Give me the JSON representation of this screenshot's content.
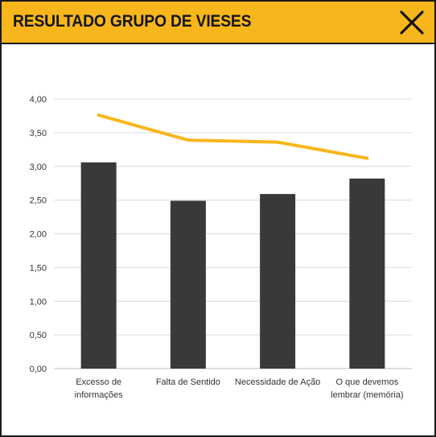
{
  "window": {
    "title": "RESULTADO GRUPO DE VIESES",
    "close_icon": "close-icon"
  },
  "colors": {
    "header_bg": "#f7b61c",
    "bar": "#3a3839",
    "line": "#f7b61c",
    "grid": "#d9d9d9"
  },
  "chart_data": {
    "type": "bar",
    "categories": [
      [
        "Excesso de",
        "informações"
      ],
      [
        "Falta de Sentido"
      ],
      [
        "Necessidade de Ação"
      ],
      [
        "O que devemos",
        "lembrar (memória)"
      ]
    ],
    "series": [
      {
        "type": "bar",
        "values": [
          3.06,
          2.49,
          2.59,
          2.82
        ]
      },
      {
        "type": "line",
        "values": [
          3.76,
          3.39,
          3.36,
          3.12
        ]
      }
    ],
    "y_ticks": [
      "0,00",
      "0,50",
      "1,00",
      "1,50",
      "2,00",
      "2,50",
      "3,00",
      "3,50",
      "4,00"
    ],
    "ylim": [
      0,
      4
    ],
    "grid": true,
    "legend": "none"
  }
}
